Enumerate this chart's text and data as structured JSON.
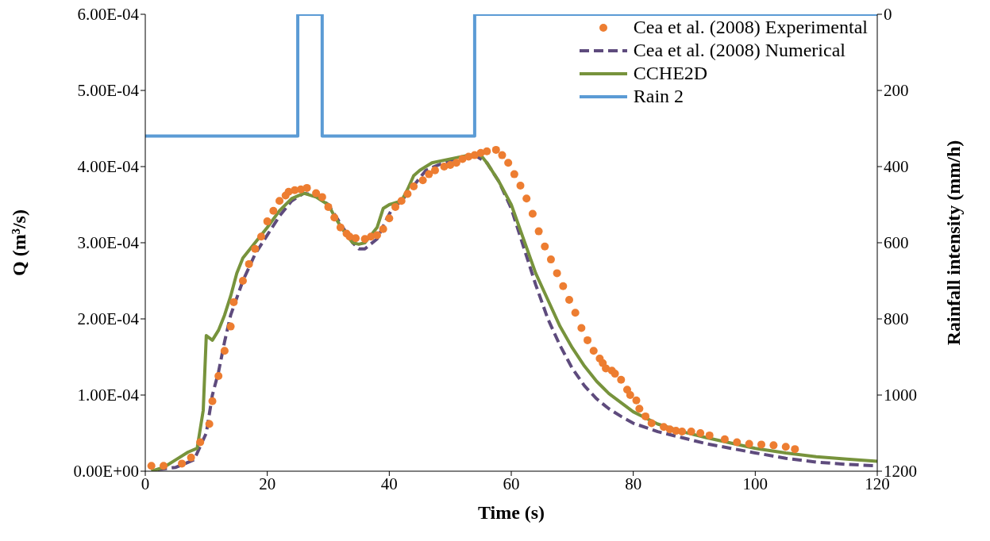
{
  "chart_data": {
    "type": "line",
    "xlabel": "Time (s)",
    "ylabel": "Q (m³/s)",
    "y2label": "Rainfall intensity (mm/h)",
    "xlim": [
      0,
      120
    ],
    "xticks": [
      0,
      20,
      40,
      60,
      80,
      100,
      120
    ],
    "ylim": [
      0,
      0.0006
    ],
    "yticks": [
      {
        "value": 0,
        "label": "0.00E+00"
      },
      {
        "value": 0.0001,
        "label": "1.00E-04"
      },
      {
        "value": 0.0002,
        "label": "2.00E-04"
      },
      {
        "value": 0.0003,
        "label": "3.00E-04"
      },
      {
        "value": 0.0004,
        "label": "4.00E-04"
      },
      {
        "value": 0.0005,
        "label": "5.00E-04"
      },
      {
        "value": 0.0006,
        "label": "6.00E-04"
      }
    ],
    "y2lim": [
      1200,
      0
    ],
    "y2ticks": [
      0,
      200,
      400,
      600,
      800,
      1000,
      1200
    ],
    "grid": false,
    "legend": "top right",
    "series": [
      {
        "name": "Cea et al. (2008) Experimental",
        "type": "scatter",
        "marker": "circle",
        "color": "#ed7d31",
        "x": [
          1,
          3,
          6,
          7.5,
          9,
          10.5,
          11,
          12,
          13,
          14,
          14.5,
          16,
          17,
          18,
          19,
          20,
          21,
          22,
          23,
          23.5,
          24.5,
          25.5,
          26.5,
          28,
          29,
          30,
          31,
          32,
          33,
          33.5,
          34.5,
          36,
          37,
          38,
          39,
          40,
          41,
          42,
          43,
          44,
          45.5,
          46.5,
          47.5,
          49,
          50,
          51,
          52,
          53,
          54,
          55,
          56,
          57.5,
          58.5,
          59.5,
          60.5,
          61.5,
          62.5,
          63.5,
          64.5,
          65.5,
          66.5,
          67.5,
          68.5,
          69.5,
          70.5,
          71.5,
          72.5,
          73.5,
          74.5,
          75,
          75.5,
          76.5,
          77,
          78,
          79,
          79.5,
          80.5,
          81,
          82,
          83,
          85,
          86,
          87,
          88,
          89.5,
          91,
          92.5,
          95,
          97,
          99,
          101,
          103,
          105,
          106.5
        ],
        "values": [
          7e-06,
          7e-06,
          1e-05,
          1.8e-05,
          3.8e-05,
          6.2e-05,
          9.2e-05,
          0.000125,
          0.000158,
          0.00019,
          0.000222,
          0.00025,
          0.000272,
          0.000292,
          0.000308,
          0.000328,
          0.000342,
          0.000355,
          0.000362,
          0.000367,
          0.000369,
          0.00037,
          0.000372,
          0.000365,
          0.00036,
          0.000347,
          0.000333,
          0.00032,
          0.000312,
          0.000308,
          0.000306,
          0.000305,
          0.000308,
          0.00031,
          0.000318,
          0.000332,
          0.000347,
          0.000355,
          0.000364,
          0.000374,
          0.000382,
          0.00039,
          0.000395,
          0.0004,
          0.000402,
          0.000405,
          0.00041,
          0.000413,
          0.000415,
          0.000418,
          0.00042,
          0.000422,
          0.000415,
          0.000405,
          0.00039,
          0.000375,
          0.000358,
          0.000338,
          0.000315,
          0.000295,
          0.000278,
          0.00026,
          0.000243,
          0.000225,
          0.000208,
          0.000188,
          0.000172,
          0.000158,
          0.000148,
          0.000142,
          0.000135,
          0.000132,
          0.000128,
          0.00012,
          0.000107,
          0.0001,
          9.3e-05,
          8.2e-05,
          7.2e-05,
          6.3e-05,
          5.8e-05,
          5.5e-05,
          5.3e-05,
          5.2e-05,
          5.2e-05,
          5e-05,
          4.7e-05,
          4.2e-05,
          3.8e-05,
          3.6e-05,
          3.5e-05,
          3.4e-05,
          3.2e-05,
          2.9e-05
        ]
      },
      {
        "name": "Cea et al. (2008) Numerical",
        "line_style": "dashed",
        "color": "#5e4b7d",
        "x": [
          2,
          5,
          8,
          10,
          11,
          12,
          13,
          14,
          16,
          18,
          20,
          22,
          24,
          26,
          28,
          30,
          32,
          34,
          35,
          36,
          38,
          39.5,
          40.5,
          42,
          44,
          46,
          48,
          50,
          52,
          54,
          56,
          58,
          60,
          62,
          64,
          66,
          68,
          70,
          72,
          74,
          76,
          78,
          80,
          84,
          88,
          92,
          96,
          100,
          105,
          110,
          115,
          120
        ],
        "values": [
          2e-06,
          5e-06,
          1.5e-05,
          5e-05,
          0.0001,
          0.00013,
          0.00017,
          0.000205,
          0.00025,
          0.000285,
          0.00031,
          0.000335,
          0.000355,
          0.000365,
          0.000362,
          0.00035,
          0.000325,
          0.0003,
          0.000292,
          0.000292,
          0.000305,
          0.00033,
          0.000345,
          0.000355,
          0.000375,
          0.000395,
          0.000402,
          0.000408,
          0.000412,
          0.000415,
          0.000405,
          0.00038,
          0.000345,
          0.000295,
          0.000245,
          0.0002,
          0.000165,
          0.000135,
          0.000112,
          9.5e-05,
          8.2e-05,
          7.2e-05,
          6.3e-05,
          5.2e-05,
          4.4e-05,
          3.6e-05,
          3e-05,
          2.4e-05,
          1.7e-05,
          1.2e-05,
          9e-06,
          7e-06
        ]
      },
      {
        "name": "CCHE2D",
        "line_style": "solid",
        "color": "#77933c",
        "x": [
          1,
          3,
          5,
          7,
          8.5,
          9.5,
          10,
          11,
          12,
          13,
          14,
          15,
          16,
          18,
          20,
          22,
          24,
          26,
          28,
          29,
          30,
          31,
          32,
          33,
          34,
          35,
          36,
          37,
          38,
          39,
          40,
          42,
          43,
          44,
          45,
          47,
          50,
          53,
          55,
          56,
          58,
          60,
          62,
          64,
          66,
          68,
          70,
          72,
          74,
          76,
          78,
          80,
          84,
          88,
          92,
          96,
          100,
          105,
          110,
          115,
          120
        ],
        "values": [
          0,
          5e-06,
          1.5e-05,
          2.5e-05,
          3e-05,
          8e-05,
          0.000178,
          0.000172,
          0.000185,
          0.000205,
          0.00023,
          0.00026,
          0.00028,
          0.0003,
          0.00032,
          0.000342,
          0.000358,
          0.000365,
          0.00036,
          0.000355,
          0.00035,
          0.000335,
          0.000322,
          0.00031,
          0.0003,
          0.000298,
          0.0003,
          0.00031,
          0.00032,
          0.000345,
          0.00035,
          0.000355,
          0.00037,
          0.000388,
          0.000395,
          0.000405,
          0.00041,
          0.000415,
          0.000415,
          0.000405,
          0.00038,
          0.00035,
          0.000305,
          0.00026,
          0.000225,
          0.00019,
          0.000162,
          0.000138,
          0.000118,
          0.000102,
          9e-05,
          7.8e-05,
          6.2e-05,
          5.2e-05,
          4.4e-05,
          3.7e-05,
          3e-05,
          2.4e-05,
          1.9e-05,
          1.6e-05,
          1.3e-05
        ]
      },
      {
        "name": "Rain 2",
        "type": "step",
        "axis": "y2",
        "line_style": "solid",
        "color": "#5b9bd5",
        "x": [
          0,
          25,
          29,
          54,
          120
        ],
        "values": [
          320,
          0,
          320,
          0,
          0
        ]
      }
    ]
  }
}
